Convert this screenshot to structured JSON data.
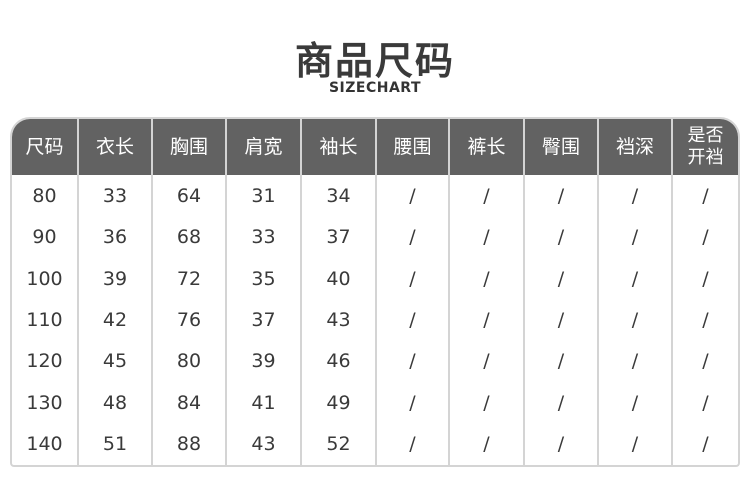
{
  "title": "商品尺码",
  "subtitle": "SIZECHART",
  "headers": [
    "尺码",
    "衣长",
    "胸围",
    "肩宽",
    "袖长",
    "腰围",
    "裤长",
    "臀围",
    "裆深",
    "是否开裆"
  ],
  "rows": [
    [
      "80",
      "33",
      "64",
      "31",
      "34",
      "/",
      "/",
      "/",
      "/",
      "/"
    ],
    [
      "90",
      "36",
      "68",
      "33",
      "37",
      "/",
      "/",
      "/",
      "/",
      "/"
    ],
    [
      "100",
      "39",
      "72",
      "35",
      "40",
      "/",
      "/",
      "/",
      "/",
      "/"
    ],
    [
      "110",
      "42",
      "76",
      "37",
      "43",
      "/",
      "/",
      "/",
      "/",
      "/"
    ],
    [
      "120",
      "45",
      "80",
      "39",
      "46",
      "/",
      "/",
      "/",
      "/",
      "/"
    ],
    [
      "130",
      "48",
      "84",
      "41",
      "49",
      "/",
      "/",
      "/",
      "/",
      "/"
    ],
    [
      "140",
      "51",
      "88",
      "43",
      "52",
      "/",
      "/",
      "/",
      "/",
      "/"
    ]
  ],
  "colors": {
    "header_bg": "#626262",
    "border": "#d4d4d4"
  }
}
